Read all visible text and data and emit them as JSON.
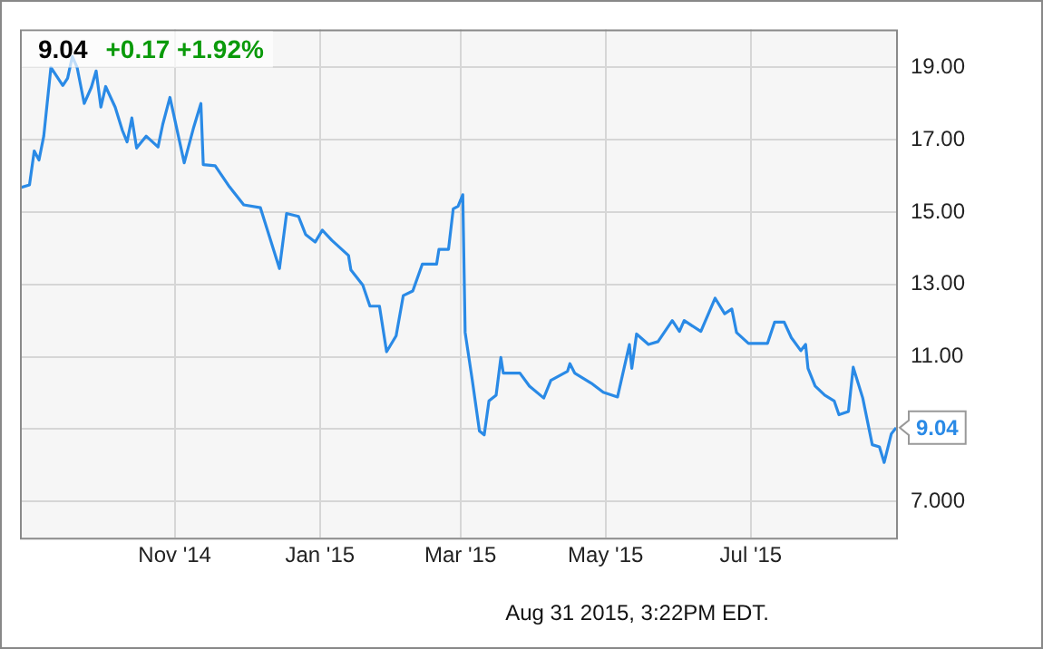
{
  "chart_data": {
    "type": "line",
    "title": "9.04",
    "subtitle": "+0.17 +1.92%",
    "x": [
      "2014-08-28",
      "2014-09-01",
      "2014-09-03",
      "2014-09-05",
      "2014-09-07",
      "2014-09-10",
      "2014-09-15",
      "2014-09-17",
      "2014-09-19",
      "2014-09-21",
      "2014-09-24",
      "2014-09-27",
      "2014-09-29",
      "2014-10-01",
      "2014-10-03",
      "2014-10-07",
      "2014-10-10",
      "2014-10-12",
      "2014-10-14",
      "2014-10-16",
      "2014-10-20",
      "2014-10-25",
      "2014-10-27",
      "2014-10-30",
      "2014-11-05",
      "2014-11-09",
      "2014-11-12",
      "2014-11-13",
      "2014-11-18",
      "2014-11-24",
      "2014-11-30",
      "2014-12-07",
      "2014-12-15",
      "2014-12-18",
      "2014-12-23",
      "2014-12-26",
      "2014-12-30",
      "2015-01-02",
      "2015-01-06",
      "2015-01-13",
      "2015-01-14",
      "2015-01-19",
      "2015-01-22",
      "2015-01-26",
      "2015-01-29",
      "2015-02-02",
      "2015-02-05",
      "2015-02-09",
      "2015-02-13",
      "2015-02-19",
      "2015-02-20",
      "2015-02-24",
      "2015-02-26",
      "2015-02-28",
      "2015-03-02",
      "2015-03-03",
      "2015-03-06",
      "2015-03-09",
      "2015-03-11",
      "2015-03-13",
      "2015-03-16",
      "2015-03-18",
      "2015-03-19",
      "2015-03-26",
      "2015-03-30",
      "2015-04-05",
      "2015-04-08",
      "2015-04-15",
      "2015-04-16",
      "2015-04-18",
      "2015-04-25",
      "2015-04-30",
      "2015-05-06",
      "2015-05-11",
      "2015-05-12",
      "2015-05-14",
      "2015-05-19",
      "2015-05-23",
      "2015-05-29",
      "2015-06-01",
      "2015-06-03",
      "2015-06-10",
      "2015-06-16",
      "2015-06-20",
      "2015-06-23",
      "2015-06-25",
      "2015-06-30",
      "2015-07-08",
      "2015-07-11",
      "2015-07-15",
      "2015-07-18",
      "2015-07-22",
      "2015-07-24",
      "2015-07-25",
      "2015-07-28",
      "2015-08-01",
      "2015-08-05",
      "2015-08-07",
      "2015-08-11",
      "2015-08-13",
      "2015-08-17",
      "2015-08-21",
      "2015-08-24",
      "2015-08-26",
      "2015-08-29",
      "2015-08-31"
    ],
    "series": [
      {
        "color": "#2a8ae6",
        "values": [
          15.67,
          15.75,
          16.69,
          16.44,
          17.1,
          19.0,
          18.5,
          18.7,
          19.3,
          19.0,
          18.0,
          18.45,
          18.9,
          17.9,
          18.47,
          17.9,
          17.26,
          16.94,
          17.6,
          16.77,
          17.1,
          16.8,
          17.43,
          18.17,
          16.36,
          17.35,
          18.0,
          16.31,
          16.28,
          15.7,
          15.2,
          15.12,
          13.44,
          14.96,
          14.88,
          14.38,
          14.17,
          14.5,
          14.22,
          13.8,
          13.4,
          12.98,
          12.4,
          12.4,
          11.14,
          11.58,
          12.69,
          12.82,
          13.56,
          13.56,
          13.97,
          13.97,
          15.09,
          15.16,
          15.48,
          11.67,
          10.35,
          8.95,
          8.84,
          9.78,
          9.94,
          10.98,
          10.55,
          10.55,
          10.19,
          9.86,
          10.35,
          10.6,
          10.81,
          10.55,
          10.27,
          10.02,
          9.89,
          11.34,
          10.68,
          11.63,
          11.34,
          11.42,
          12.0,
          11.7,
          12.0,
          11.7,
          12.62,
          12.19,
          12.32,
          11.67,
          11.37,
          11.37,
          11.96,
          11.96,
          11.53,
          11.17,
          11.34,
          10.68,
          10.19,
          9.94,
          9.78,
          9.4,
          9.49,
          10.71,
          9.86,
          8.57,
          8.51,
          8.08,
          8.87,
          9.04
        ]
      }
    ],
    "xlim": [
      "2014-08-28",
      "2015-08-31"
    ],
    "xticks": [
      {
        "value": "2014-11-01",
        "label": "Nov '14"
      },
      {
        "value": "2015-01-01",
        "label": "Jan '15"
      },
      {
        "value": "2015-03-01",
        "label": "Mar '15"
      },
      {
        "value": "2015-05-01",
        "label": "May '15"
      },
      {
        "value": "2015-07-01",
        "label": "Jul '15"
      }
    ],
    "ylim": [
      6.0,
      20.05
    ],
    "yticks": [
      {
        "value": 7,
        "label": "7.000"
      },
      {
        "value": 9,
        "label": null
      },
      {
        "value": 11,
        "label": "11.00"
      },
      {
        "value": 13,
        "label": "13.00"
      },
      {
        "value": 15,
        "label": "15.00"
      },
      {
        "value": 17,
        "label": "17.00"
      },
      {
        "value": 19,
        "label": "19.00"
      }
    ],
    "annotations": [
      {
        "text": "9.04",
        "x": "2015-08-31",
        "y": 9.04
      },
      "Aug 31 2015, 3:22PM EDT."
    ],
    "grid": true,
    "legend": false,
    "marker": "none",
    "line_style": "solid"
  }
}
